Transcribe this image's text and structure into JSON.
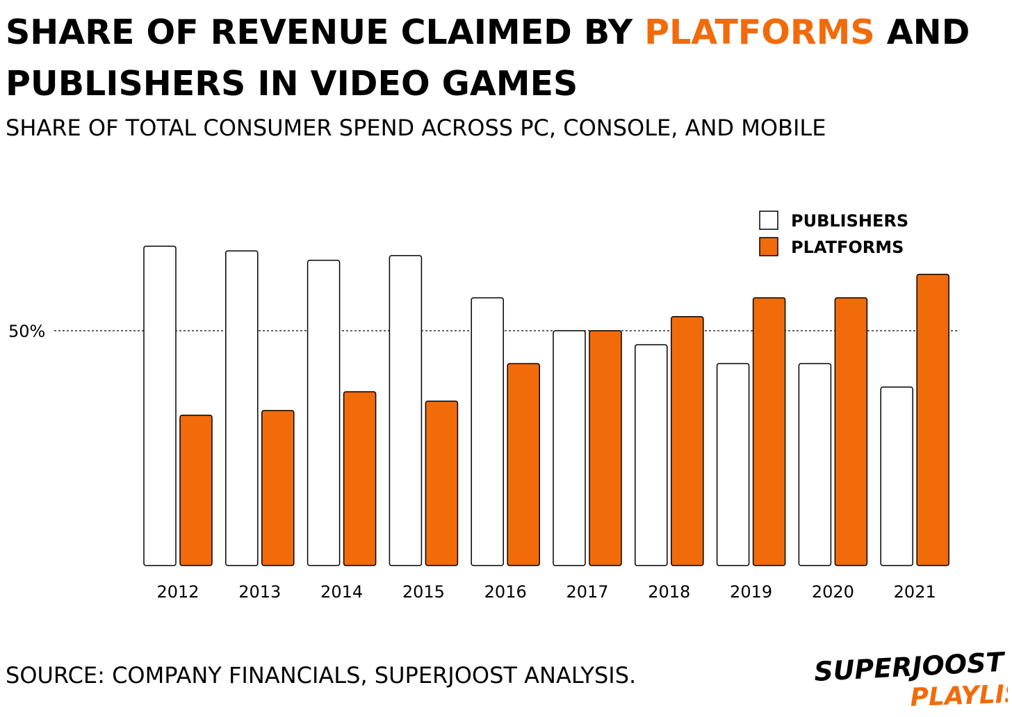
{
  "title": {
    "part1": "SHARE OF REVENUE CLAIMED BY ",
    "accent": "PLATFORMS",
    "part2": " AND PUBLISHERS IN VIDEO GAMES"
  },
  "subtitle": "SHARE OF TOTAL CONSUMER SPEND ACROSS PC, CONSOLE, AND MOBILE",
  "source": "SOURCE: COMPANY FINANCIALS, SUPERJOOST ANALYSIS.",
  "logo": {
    "line1": "SUPERJOOST",
    "line2": "PLAYLIST"
  },
  "colors": {
    "publishers": "#ffffff",
    "platforms": "#f26b0a",
    "accent": "#f26b0a",
    "outline": "#000000"
  },
  "chart_data": {
    "type": "bar",
    "categories": [
      "2012",
      "2013",
      "2014",
      "2015",
      "2016",
      "2017",
      "2018",
      "2019",
      "2020",
      "2021"
    ],
    "series": [
      {
        "name": "PUBLISHERS",
        "values": [
          68,
          67,
          65,
          66,
          57,
          50,
          47,
          43,
          43,
          38
        ]
      },
      {
        "name": "PLATFORMS",
        "values": [
          32,
          33,
          37,
          35,
          43,
          50,
          53,
          57,
          57,
          62
        ]
      }
    ],
    "ylim": [
      0,
      74
    ],
    "reference_line": {
      "value": 50,
      "label": "50%"
    },
    "legend_position": "top-right",
    "grid": false
  }
}
